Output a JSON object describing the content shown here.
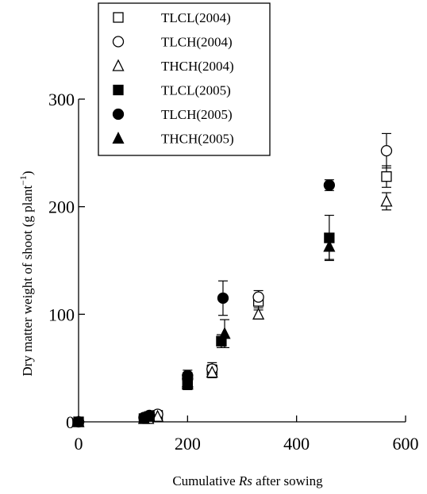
{
  "chart_data": {
    "type": "scatter",
    "title": "",
    "xlabel_prefix": "Cumulative ",
    "xlabel_italic": "Rs",
    "xlabel_suffix": " after sowing",
    "ylabel_main": "Dry matter weight of shoot (g plant",
    "ylabel_sup": "−1",
    "ylabel_close": ")",
    "xlim": [
      0,
      600
    ],
    "ylim": [
      0,
      300
    ],
    "xticks": [
      0,
      200,
      400,
      600
    ],
    "yticks": [
      0,
      100,
      200,
      300
    ],
    "grid": false,
    "legend_position": "top-left",
    "series": [
      {
        "name": "TLCL(2004)",
        "marker": "square-open",
        "points": [
          {
            "x": 128,
            "y": 4
          },
          {
            "x": 145,
            "y": 6
          },
          {
            "x": 200,
            "y": 38,
            "err": 6
          },
          {
            "x": 245,
            "y": 48,
            "err": 5
          },
          {
            "x": 330,
            "y": 112,
            "err": 6
          },
          {
            "x": 565,
            "y": 228,
            "err": 10
          }
        ]
      },
      {
        "name": "TLCH(2004)",
        "marker": "circle-open",
        "points": [
          {
            "x": 128,
            "y": 5
          },
          {
            "x": 145,
            "y": 7
          },
          {
            "x": 200,
            "y": 40,
            "err": 6
          },
          {
            "x": 245,
            "y": 49,
            "err": 6
          },
          {
            "x": 330,
            "y": 116,
            "err": 6
          },
          {
            "x": 565,
            "y": 252,
            "err": 16
          }
        ]
      },
      {
        "name": "THCH(2004)",
        "marker": "triangle-open",
        "points": [
          {
            "x": 128,
            "y": 3
          },
          {
            "x": 145,
            "y": 5
          },
          {
            "x": 200,
            "y": 35,
            "err": 5
          },
          {
            "x": 245,
            "y": 46,
            "err": 5
          },
          {
            "x": 330,
            "y": 100,
            "err": 4
          },
          {
            "x": 565,
            "y": 205,
            "err": 8
          }
        ]
      },
      {
        "name": "TLCL(2005)",
        "marker": "square-filled",
        "points": [
          {
            "x": 0,
            "y": 0
          },
          {
            "x": 120,
            "y": 3
          },
          {
            "x": 130,
            "y": 5
          },
          {
            "x": 200,
            "y": 35,
            "err": 5
          },
          {
            "x": 262,
            "y": 75,
            "err": 6
          },
          {
            "x": 460,
            "y": 171,
            "err": 21
          }
        ]
      },
      {
        "name": "TLCH(2005)",
        "marker": "circle-filled",
        "points": [
          {
            "x": 0,
            "y": 0
          },
          {
            "x": 120,
            "y": 4
          },
          {
            "x": 130,
            "y": 6
          },
          {
            "x": 200,
            "y": 43,
            "err": 5
          },
          {
            "x": 265,
            "y": 115,
            "err": 16
          },
          {
            "x": 460,
            "y": 220,
            "err": 5
          }
        ]
      },
      {
        "name": "THCH(2005)",
        "marker": "triangle-filled",
        "points": [
          {
            "x": 0,
            "y": 0
          },
          {
            "x": 120,
            "y": 3
          },
          {
            "x": 130,
            "y": 5
          },
          {
            "x": 200,
            "y": 37,
            "err": 5
          },
          {
            "x": 268,
            "y": 82,
            "err": 13
          },
          {
            "x": 460,
            "y": 163,
            "err": 12
          }
        ]
      }
    ]
  }
}
